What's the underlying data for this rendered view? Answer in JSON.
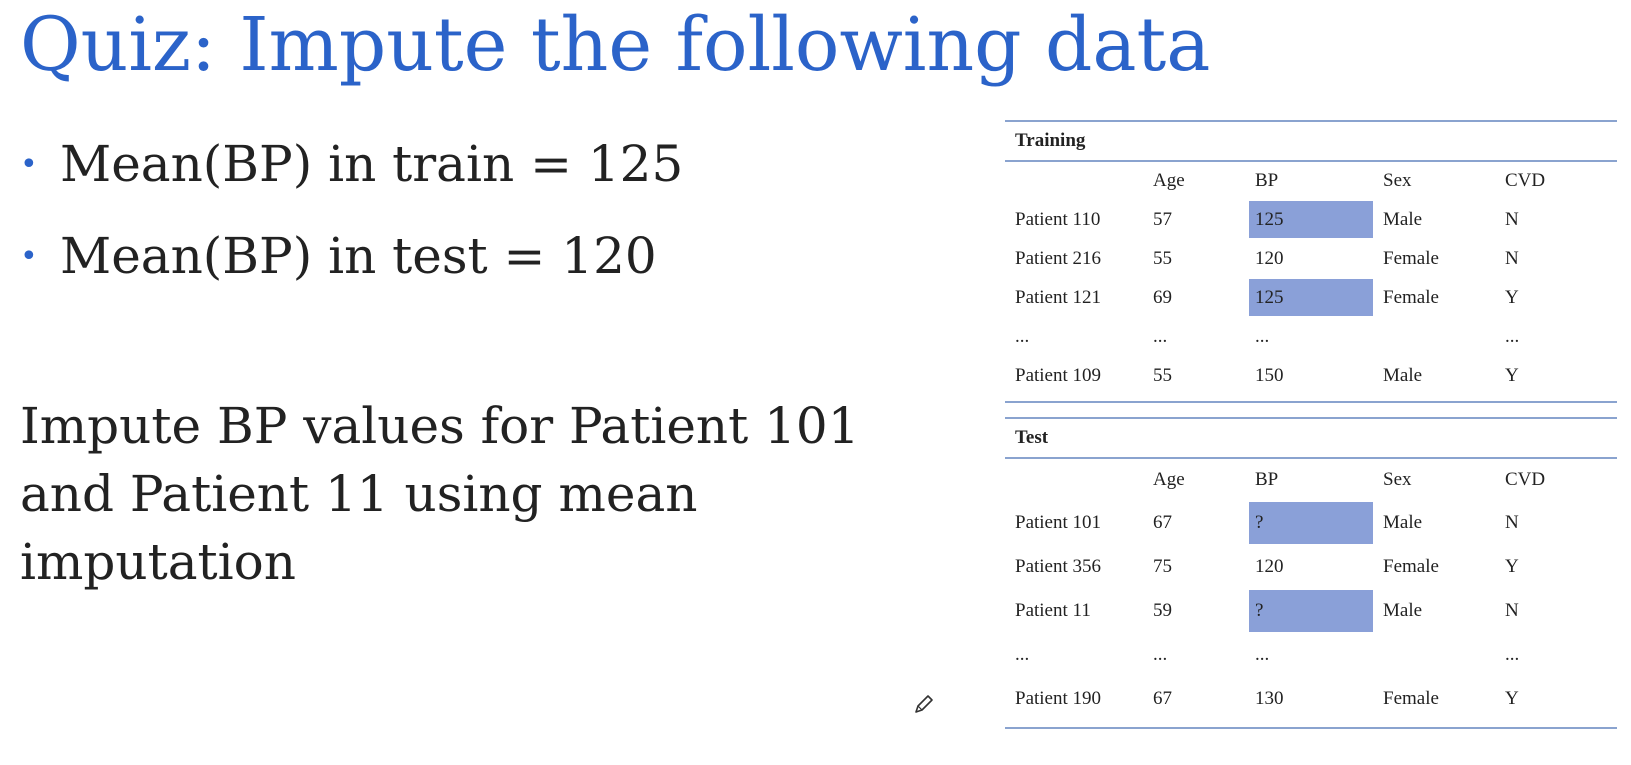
{
  "title": "Quiz: Impute the following data",
  "bullets": [
    "Mean(BP) in train = 125",
    "Mean(BP) in test = 120"
  ],
  "bullet_symbol": "•",
  "question": "Impute BP values for Patient 101 and Patient 11 using mean imputation",
  "colors": {
    "title": "#2b63c9",
    "highlight": "#8aa0d8",
    "rule": "#8aa3cf"
  },
  "training": {
    "heading": "Training",
    "columns": [
      "",
      "Age",
      "BP",
      "Sex",
      "CVD"
    ],
    "rows": [
      [
        "Patient 110",
        "57",
        "125",
        "Male",
        "N"
      ],
      [
        "Patient 216",
        "55",
        "120",
        "Female",
        "N"
      ],
      [
        "Patient 121",
        "69",
        "125",
        "Female",
        "Y"
      ],
      [
        "...",
        "...",
        "...",
        "",
        "..."
      ],
      [
        "Patient 109",
        "55",
        "150",
        "Male",
        "Y"
      ]
    ],
    "highlighted_bp_rows": [
      0,
      2
    ]
  },
  "test": {
    "heading": "Test",
    "columns": [
      "",
      "Age",
      "BP",
      "Sex",
      "CVD"
    ],
    "rows": [
      [
        "Patient 101",
        "67",
        "?",
        "Male",
        "N"
      ],
      [
        "Patient 356",
        "75",
        "120",
        "Female",
        "Y"
      ],
      [
        "Patient 11",
        "59",
        "?",
        "Male",
        "N"
      ],
      [
        "...",
        "...",
        "...",
        "",
        "..."
      ],
      [
        "Patient 190",
        "67",
        "130",
        "Female",
        "Y"
      ]
    ],
    "highlighted_bp_rows": [
      0,
      2
    ]
  },
  "icons": {
    "pencil": "pencil-icon"
  }
}
